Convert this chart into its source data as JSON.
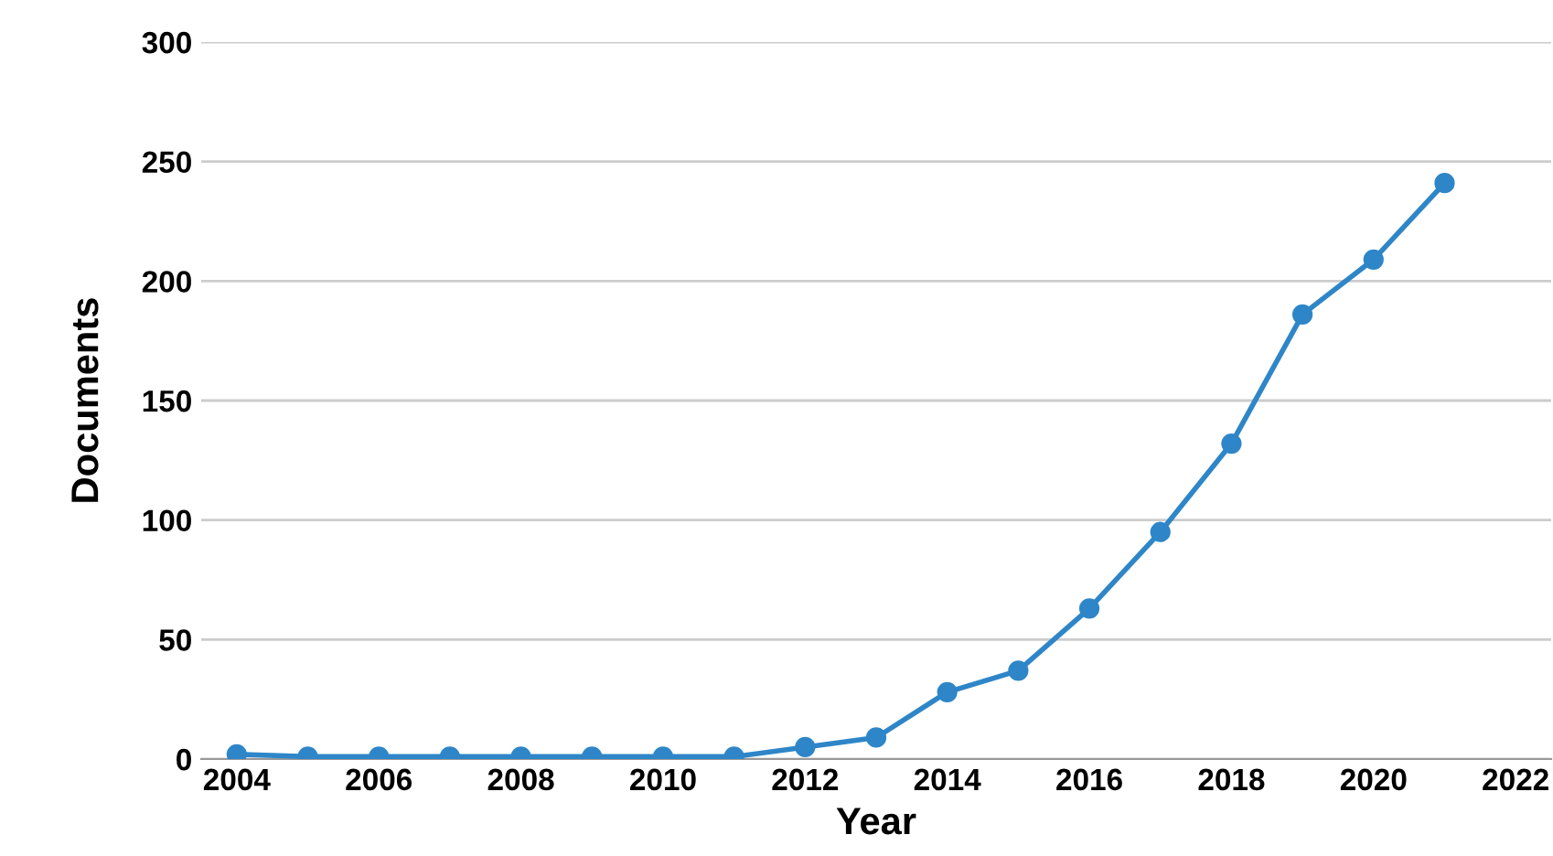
{
  "chart_data": {
    "type": "line",
    "xlabel": "Year",
    "ylabel": "Documents",
    "x": [
      2004,
      2005,
      2006,
      2007,
      2008,
      2009,
      2010,
      2011,
      2012,
      2013,
      2014,
      2015,
      2016,
      2017,
      2018,
      2019,
      2020,
      2021
    ],
    "series": [
      {
        "color": "#2e86c8",
        "values": [
          2,
          1,
          1,
          1,
          1,
          1,
          1,
          1,
          5,
          9,
          28,
          37,
          63,
          95,
          132,
          186,
          209,
          241
        ]
      }
    ],
    "xlim": [
      2003.5,
      2022.5
    ],
    "xticks": [
      2004,
      2006,
      2008,
      2010,
      2012,
      2014,
      2016,
      2018,
      2020,
      2022
    ],
    "ylim": [
      0,
      300
    ],
    "yticks": [
      0,
      50,
      100,
      150,
      200,
      250,
      300
    ],
    "grid": "y",
    "marker": "circle",
    "line_style": "solid"
  }
}
